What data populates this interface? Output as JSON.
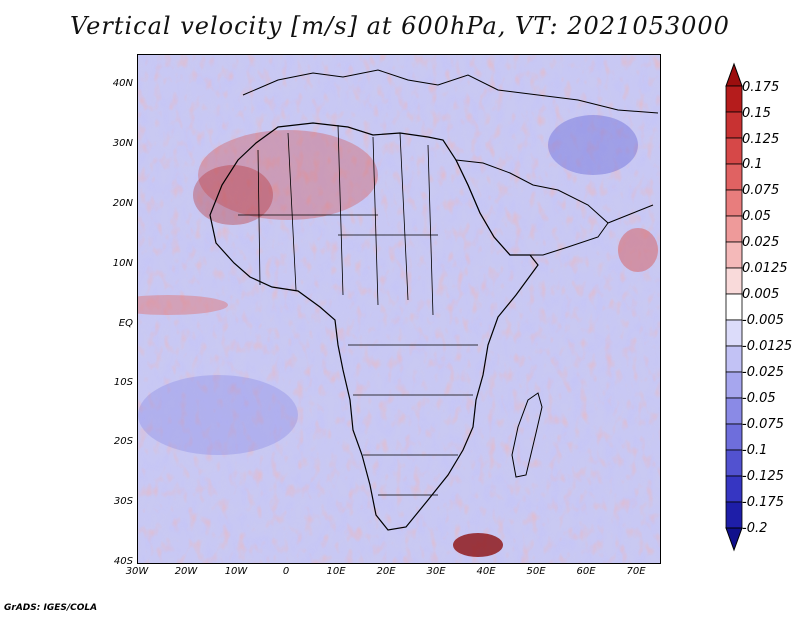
{
  "title": "Vertical velocity [m/s] at 600hPa, VT: 2021053000",
  "credit": "GrADS: IGES/COLA",
  "map": {
    "lat_labels": [
      "40N",
      "30N",
      "20N",
      "10N",
      "EQ",
      "10S",
      "20S",
      "30S",
      "40S"
    ],
    "lon_labels": [
      "30W",
      "20W",
      "10W",
      "0",
      "10E",
      "20E",
      "30E",
      "40E",
      "50E",
      "60E",
      "70E"
    ],
    "lon_range": [
      -30,
      75
    ],
    "lat_range": [
      -40,
      45
    ]
  },
  "colorbar": {
    "labels": [
      "0.175",
      "0.15",
      "0.125",
      "0.1",
      "0.075",
      "0.05",
      "0.025",
      "0.0125",
      "0.005",
      "-0.005",
      "-0.0125",
      "-0.025",
      "-0.05",
      "-0.075",
      "-0.1",
      "-0.125",
      "-0.175",
      "-0.2"
    ],
    "colors": [
      "#9c0e0e",
      "#b51c1c",
      "#c83232",
      "#d64848",
      "#e06262",
      "#e87d7d",
      "#ee9a9a",
      "#f4b9b9",
      "#f9dada",
      "#ffffff",
      "#dcdcfa",
      "#c2c2f5",
      "#a6a6ee",
      "#8a8ae6",
      "#6e6edc",
      "#5252d0",
      "#3636c2",
      "#1e1ea8",
      "#10108c"
    ]
  }
}
